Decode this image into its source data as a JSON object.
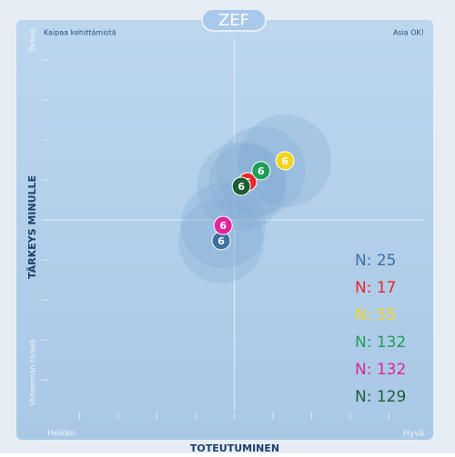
{
  "chart_data": {
    "type": "scatter",
    "title": "ZEF",
    "xlabel": "TOTEUTUMINEN",
    "ylabel": "TÄRKEYS MINULLE",
    "x_low_label": "Heikko",
    "x_high_label": "Hyvä",
    "y_low_label": "Vähemmän tärkeä",
    "y_high_label": "Tärkeä",
    "top_left_label": "Kaipaa kehittämistä",
    "top_right_label": "Asia OK!",
    "xlim": [
      0,
      10
    ],
    "ylim": [
      0,
      10
    ],
    "xticks": [
      1,
      2,
      3,
      4,
      5,
      6,
      7,
      8,
      9
    ],
    "yticks": [
      1,
      2,
      3,
      4,
      5,
      6,
      7,
      8,
      9
    ],
    "center": [
      5,
      5
    ],
    "series": [
      {
        "name": "N: 25",
        "color": "#3f6f9f",
        "x": [
          4.66
        ],
        "values": [
          4.48
        ],
        "spread": [
          1.1
        ],
        "point_labels": [
          "6"
        ]
      },
      {
        "name": "N: 17",
        "color": "#e8262a",
        "x": [
          5.34
        ],
        "values": [
          5.95
        ],
        "spread": [
          1.0
        ],
        "point_labels": [
          "6"
        ]
      },
      {
        "name": "N: 55",
        "color": "#f2d51e",
        "x": [
          6.31
        ],
        "values": [
          6.48
        ],
        "spread": [
          1.2
        ],
        "point_labels": [
          "6"
        ]
      },
      {
        "name": "N: 132",
        "color": "#1f9e55",
        "x": [
          5.69
        ],
        "values": [
          6.23
        ],
        "spread": [
          1.15
        ],
        "point_labels": [
          "6"
        ]
      },
      {
        "name": "N: 132",
        "color": "#e0259c",
        "x": [
          4.71
        ],
        "values": [
          4.86
        ],
        "spread": [
          1.1
        ],
        "point_labels": [
          "6"
        ]
      },
      {
        "name": "N: 129",
        "color": "#1c5e34",
        "x": [
          5.18
        ],
        "values": [
          5.84
        ],
        "spread": [
          1.15
        ],
        "point_labels": [
          "6"
        ]
      }
    ]
  }
}
